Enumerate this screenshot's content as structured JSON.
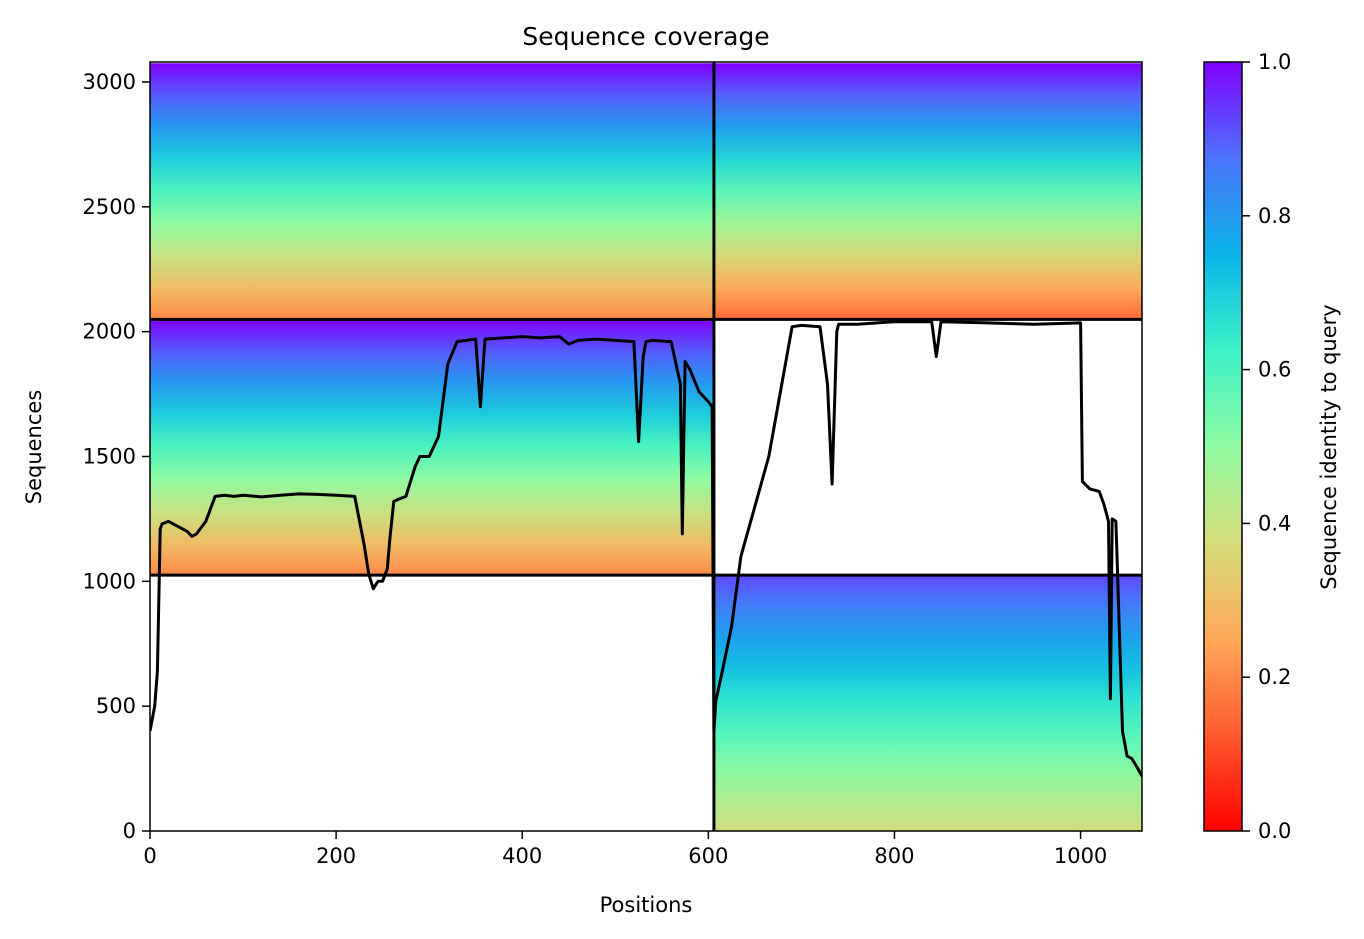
{
  "chart_data": {
    "type": "heatmap",
    "title": "Sequence coverage",
    "xlabel": "Positions",
    "ylabel": "Sequences",
    "xlim": [
      0,
      1066
    ],
    "ylim": [
      0,
      3080
    ],
    "xticks": [
      0,
      200,
      400,
      600,
      800,
      1000
    ],
    "yticks": [
      0,
      500,
      1000,
      1500,
      2000,
      2500,
      3000
    ],
    "grid": false,
    "colormap": "rainbow_r",
    "colorbar": {
      "label": "Sequence identity to query",
      "range": [
        0.0,
        1.0
      ],
      "ticks": [
        "0.0",
        "0.2",
        "0.4",
        "0.6",
        "0.8",
        "1.0"
      ]
    },
    "blocks": [
      {
        "name": "chain-A-block-1",
        "x": [
          0,
          606
        ],
        "y": [
          2049,
          3075
        ],
        "identity_top": 1.0,
        "identity_bottom": 0.2
      },
      {
        "name": "chain-B-block-1",
        "x": [
          606,
          1066
        ],
        "y": [
          2049,
          3075
        ],
        "identity_top": 1.0,
        "identity_bottom": 0.15
      },
      {
        "name": "chain-A-block-2",
        "x": [
          0,
          606
        ],
        "y": [
          1025,
          2049
        ],
        "identity_top": 1.0,
        "identity_bottom": 0.2
      },
      {
        "name": "chain-B-block-2",
        "x": [
          606,
          1066
        ],
        "y": [
          1025,
          2049
        ],
        "identity_top": null,
        "identity_bottom": null
      },
      {
        "name": "chain-A-block-3",
        "x": [
          0,
          606
        ],
        "y": [
          0,
          1025
        ],
        "identity_top": null,
        "identity_bottom": null
      },
      {
        "name": "chain-B-block-3",
        "x": [
          606,
          1066
        ],
        "y": [
          0,
          1025
        ],
        "identity_top": 0.92,
        "identity_bottom": 0.38
      }
    ],
    "separators": {
      "x": [
        606
      ],
      "y": [
        1025,
        2049
      ]
    },
    "coverage_line": {
      "name": "coverage",
      "color": "#000000",
      "x": [
        0,
        5,
        8,
        10,
        11,
        13,
        20,
        40,
        45,
        50,
        60,
        70,
        80,
        90,
        100,
        120,
        140,
        160,
        180,
        200,
        220,
        230,
        235,
        240,
        245,
        250,
        255,
        258,
        262,
        268,
        275,
        285,
        290,
        300,
        310,
        320,
        330,
        340,
        350,
        355,
        360,
        380,
        400,
        420,
        440,
        450,
        460,
        480,
        500,
        520,
        525,
        530,
        533,
        540,
        560,
        570,
        572,
        575,
        580,
        590,
        600,
        604,
        606,
        608,
        615,
        625,
        635,
        650,
        665,
        690,
        700,
        720,
        728,
        733,
        738,
        740,
        760,
        800,
        840,
        845,
        850,
        900,
        950,
        1000,
        1002,
        1010,
        1020,
        1025,
        1030,
        1032,
        1034,
        1038,
        1040,
        1045,
        1050,
        1055,
        1060,
        1066
      ],
      "y": [
        400,
        500,
        640,
        1020,
        1210,
        1230,
        1240,
        1200,
        1180,
        1190,
        1240,
        1340,
        1345,
        1340,
        1345,
        1338,
        1345,
        1350,
        1348,
        1345,
        1340,
        1150,
        1030,
        970,
        1000,
        1000,
        1050,
        1180,
        1320,
        1330,
        1340,
        1460,
        1500,
        1500,
        1580,
        1870,
        1960,
        1965,
        1970,
        1700,
        1970,
        1975,
        1980,
        1975,
        1980,
        1950,
        1965,
        1970,
        1965,
        1960,
        1560,
        1900,
        1960,
        1965,
        1960,
        1790,
        1190,
        1880,
        1850,
        1760,
        1720,
        1700,
        400,
        520,
        640,
        820,
        1100,
        1300,
        1500,
        2020,
        2025,
        2020,
        1790,
        1390,
        2000,
        2030,
        2030,
        2040,
        2040,
        1900,
        2040,
        2035,
        2030,
        2035,
        1400,
        1370,
        1360,
        1310,
        1240,
        530,
        1250,
        1240,
        1000,
        400,
        300,
        290,
        260,
        220
      ]
    }
  }
}
